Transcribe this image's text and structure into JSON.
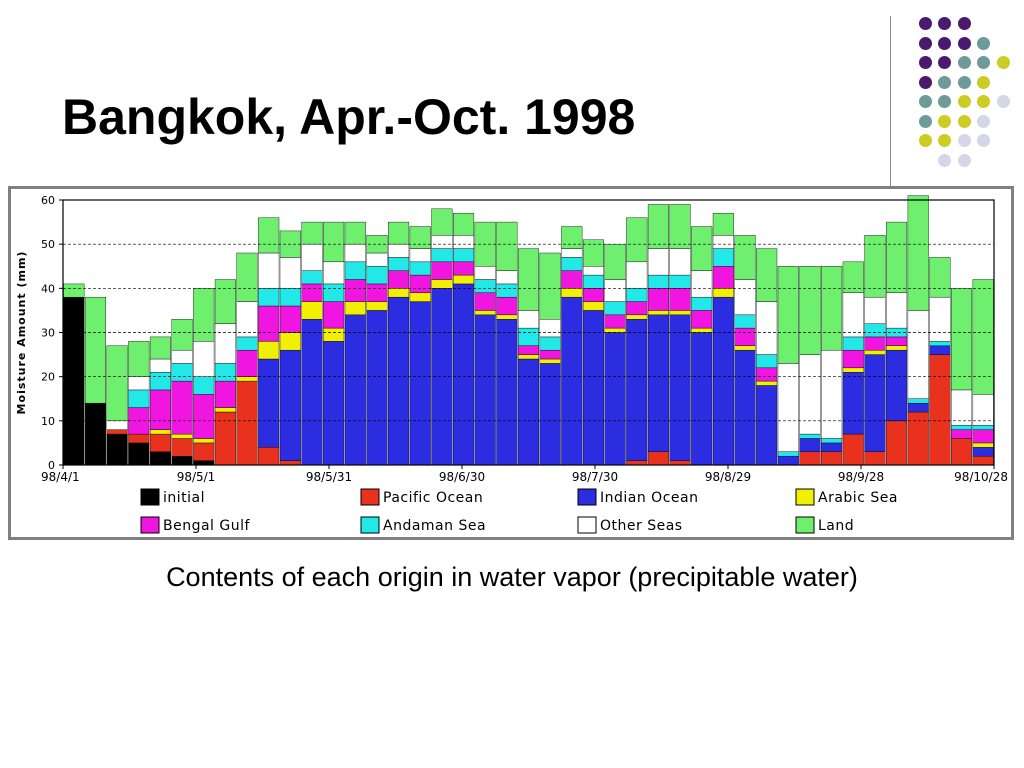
{
  "slide": {
    "title": "Bangkok, Apr.-Oct. 1998",
    "caption": "Contents of each origin in water vapor (precipitable water)"
  },
  "decor_colors": {
    "purple": "#4a1a6e",
    "teal": "#6e9a9a",
    "yellow": "#cccc22",
    "lavender": "#d6d6e8"
  },
  "chart_data": {
    "type": "bar",
    "stacked": true,
    "title": "",
    "xlabel": "",
    "ylabel": "Moisture Amount (mm)",
    "ylim": [
      0,
      60
    ],
    "yticks": [
      0,
      10,
      20,
      30,
      40,
      50,
      60
    ],
    "grid": "dashed horizontal at 10, 20, 30, 40, 50",
    "xtick_labels": [
      "98/4/1",
      "98/5/1",
      "98/5/31",
      "98/6/30",
      "98/7/30",
      "98/8/29",
      "98/9/28",
      "98/10/28"
    ],
    "x": [
      "98/4/1",
      "98/4/6",
      "98/4/11",
      "98/4/16",
      "98/4/21",
      "98/4/26",
      "98/5/1",
      "98/5/6",
      "98/5/11",
      "98/5/16",
      "98/5/21",
      "98/5/26",
      "98/5/31",
      "98/6/5",
      "98/6/10",
      "98/6/15",
      "98/6/20",
      "98/6/25",
      "98/6/30",
      "98/7/5",
      "98/7/10",
      "98/7/15",
      "98/7/20",
      "98/7/25",
      "98/7/30",
      "98/8/4",
      "98/8/9",
      "98/8/14",
      "98/8/19",
      "98/8/24",
      "98/8/29",
      "98/9/3",
      "98/9/8",
      "98/9/13",
      "98/9/18",
      "98/9/23",
      "98/9/28",
      "98/10/3",
      "98/10/8",
      "98/10/13",
      "98/10/18",
      "98/10/23",
      "98/10/28"
    ],
    "legend_position": "bottom",
    "series": [
      {
        "name": "initial",
        "color": "#000000",
        "values": [
          38,
          14,
          7,
          5,
          3,
          2,
          1,
          0,
          0,
          0,
          0,
          0,
          0,
          0,
          0,
          0,
          0,
          0,
          0,
          0,
          0,
          0,
          0,
          0,
          0,
          0,
          0,
          0,
          0,
          0,
          0,
          0,
          0,
          0,
          0,
          0,
          0,
          0,
          0,
          0,
          0,
          0,
          0
        ]
      },
      {
        "name": "Pacific Ocean",
        "color": "#e8321e",
        "values": [
          0,
          0,
          1,
          2,
          4,
          4,
          4,
          12,
          19,
          4,
          1,
          0,
          0,
          0,
          0,
          0,
          0,
          0,
          0,
          0,
          0,
          0,
          0,
          0,
          0,
          0,
          1,
          3,
          1,
          0,
          0,
          0,
          0,
          0,
          3,
          3,
          7,
          3,
          10,
          12,
          25,
          6,
          2
        ]
      },
      {
        "name": "Indian Ocean",
        "color": "#2c2ce0",
        "values": [
          0,
          0,
          0,
          0,
          0,
          0,
          0,
          0,
          0,
          20,
          25,
          33,
          28,
          34,
          35,
          38,
          37,
          40,
          41,
          34,
          33,
          24,
          23,
          38,
          35,
          30,
          32,
          31,
          33,
          30,
          38,
          26,
          18,
          2,
          3,
          2,
          14,
          22,
          16,
          2,
          2,
          0,
          2
        ]
      },
      {
        "name": "Arabic Sea",
        "color": "#f0f000",
        "values": [
          0,
          0,
          0,
          0,
          1,
          1,
          1,
          1,
          1,
          4,
          4,
          4,
          3,
          3,
          2,
          2,
          2,
          2,
          2,
          1,
          1,
          1,
          1,
          2,
          2,
          1,
          1,
          1,
          1,
          1,
          2,
          1,
          1,
          0,
          0,
          0,
          1,
          1,
          1,
          0,
          0,
          0,
          1
        ]
      },
      {
        "name": "Bengal Gulf",
        "color": "#f015e0",
        "values": [
          0,
          0,
          0,
          6,
          9,
          12,
          10,
          6,
          6,
          8,
          6,
          4,
          6,
          5,
          4,
          4,
          4,
          4,
          3,
          4,
          4,
          2,
          2,
          4,
          3,
          3,
          3,
          5,
          5,
          4,
          5,
          4,
          3,
          0,
          0,
          0,
          4,
          3,
          2,
          0,
          0,
          2,
          3
        ]
      },
      {
        "name": "Andaman Sea",
        "color": "#22e8e8",
        "values": [
          0,
          0,
          0,
          4,
          4,
          4,
          4,
          4,
          3,
          4,
          4,
          3,
          4,
          4,
          4,
          3,
          3,
          3,
          3,
          3,
          3,
          4,
          3,
          3,
          3,
          3,
          3,
          3,
          3,
          3,
          4,
          3,
          3,
          1,
          1,
          1,
          3,
          3,
          2,
          1,
          1,
          1,
          1
        ]
      },
      {
        "name": "Other Seas",
        "color": "#ffffff",
        "values": [
          0,
          0,
          2,
          3,
          3,
          3,
          8,
          9,
          8,
          8,
          7,
          6,
          5,
          4,
          3,
          3,
          3,
          3,
          3,
          3,
          3,
          4,
          4,
          2,
          2,
          5,
          6,
          6,
          6,
          6,
          3,
          8,
          12,
          20,
          18,
          20,
          10,
          6,
          8,
          20,
          10,
          8,
          7
        ]
      },
      {
        "name": "Land",
        "color": "#6ef06e",
        "values": [
          3,
          24,
          17,
          8,
          5,
          7,
          12,
          10,
          11,
          8,
          6,
          5,
          9,
          5,
          4,
          5,
          5,
          6,
          5,
          10,
          11,
          14,
          15,
          5,
          6,
          8,
          10,
          10,
          10,
          10,
          5,
          10,
          12,
          22,
          20,
          19,
          7,
          14,
          16,
          26,
          9,
          23,
          26
        ]
      }
    ]
  }
}
